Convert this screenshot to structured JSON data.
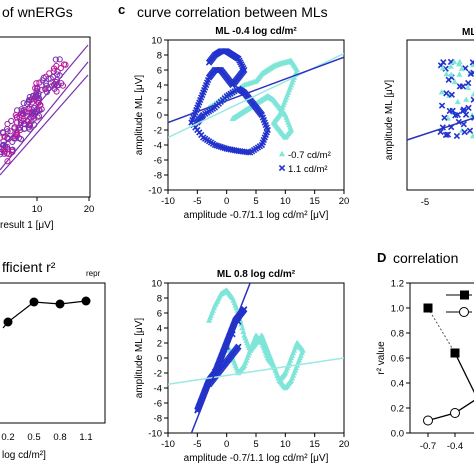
{
  "panels": {
    "b_partial": {
      "title": "of wnERGs",
      "xlabel": "result 1 [μV]",
      "xticks": [
        10,
        20
      ]
    },
    "c": {
      "letter": "c",
      "heading": "curve correlation between MLs",
      "legend": [
        "-0.7 cd/m²",
        "1.1 cd/m²"
      ]
    },
    "c_right_partial": {
      "title": "ML",
      "xlabel": "-5",
      "xtick_partial": "-5"
    },
    "b2_partial": {
      "title_main": "fficient r²",
      "title_sub": "repr",
      "xlabel": "log cd/m²]",
      "xticks": [
        "0.2",
        "0.5",
        "0.8",
        "1.1"
      ]
    },
    "d": {
      "letter": "D",
      "heading": "correlation",
      "ylabel": "r² value",
      "yticks": [
        "0.0",
        "0.2",
        "0.4",
        "0.6",
        "0.8",
        "1.0",
        "1.2"
      ],
      "xticks": [
        "-0.7",
        "-0.4",
        "-0."
      ]
    }
  },
  "colors": {
    "cyan": "#7fe5d8",
    "blue": "#2233cc",
    "darkblue": "#1a1aa0",
    "fitcyan": "#9be8e4",
    "fitblue": "#2a30c0",
    "purple": "#7a2fb0",
    "magenta": "#c0169a"
  },
  "chart_data": [
    {
      "type": "scatter",
      "title": "ML -0.4 log cd/m²",
      "xlabel": "amplitude -0.7/1.1 log cd/m² [μV]",
      "ylabel": "amplitude ML [μV]",
      "xlim": [
        -10,
        20
      ],
      "ylim": [
        -10,
        10
      ],
      "xticks": [
        -10,
        -5,
        0,
        5,
        10,
        15,
        20
      ],
      "yticks": [
        -10,
        -8,
        -6,
        -4,
        -2,
        0,
        2,
        4,
        6,
        8,
        10
      ],
      "legend": "inside bottom-right",
      "series": [
        {
          "name": "-0.7 cd/m²",
          "marker": "triangle",
          "x": [
            -3,
            -1,
            1,
            3,
            5,
            6,
            7,
            8,
            9,
            10,
            11,
            12,
            11,
            10,
            9,
            8,
            9,
            10,
            11,
            10,
            9,
            8,
            7,
            6,
            5,
            4,
            3,
            2,
            1
          ],
          "y": [
            1,
            2,
            3,
            4,
            4.5,
            5.5,
            6,
            6.5,
            6.8,
            7,
            7.2,
            6,
            4,
            2,
            0,
            -1,
            -2,
            -3,
            -2,
            0,
            1,
            2,
            2.5,
            2,
            1.5,
            1,
            0.5,
            0,
            -0.5
          ]
        },
        {
          "name": "1.1 cd/m²",
          "marker": "x",
          "x": [
            -3,
            -2,
            -1,
            0,
            1,
            2,
            3,
            2,
            1,
            0,
            -1,
            -2,
            -3,
            -4,
            -5,
            -6,
            -4,
            -2,
            0,
            2,
            4,
            6,
            7,
            6,
            5,
            4,
            3,
            2,
            0,
            -2,
            -4,
            -5
          ],
          "y": [
            7,
            8,
            8.5,
            8.5,
            8,
            7.5,
            6,
            5,
            4,
            5,
            6,
            6,
            5,
            3,
            1,
            -1,
            -3,
            -4,
            -4.5,
            -4.8,
            -5,
            -4,
            -2,
            0,
            1,
            2,
            3,
            3.5,
            2.5,
            1,
            0,
            -1
          ]
        }
      ],
      "fits": [
        {
          "series": "-0.7 cd/m²",
          "from": [
            -10,
            -3.0
          ],
          "to": [
            20,
            8.2
          ]
        },
        {
          "series": "1.1 cd/m²",
          "from": [
            -10,
            -1.0
          ],
          "to": [
            20,
            7.7
          ]
        }
      ]
    },
    {
      "type": "scatter",
      "title": "ML 0.8 log cd/m²",
      "xlabel": "amplitude -0.7/1.1 log cd/m² [μV]",
      "ylabel": "amplitude ML [μV]",
      "xlim": [
        -10,
        20
      ],
      "ylim": [
        -10,
        10
      ],
      "xticks": [
        -10,
        -5,
        0,
        5,
        10,
        15,
        20
      ],
      "yticks": [
        -10,
        -8,
        -6,
        -4,
        -2,
        0,
        2,
        4,
        6,
        8,
        10
      ],
      "series": [
        {
          "name": "-0.7 cd/m²",
          "marker": "triangle",
          "x": [
            -3,
            -2,
            -1,
            0,
            1,
            2,
            3,
            4,
            5,
            6,
            7,
            8,
            9,
            10,
            11,
            12,
            13,
            12,
            11,
            10,
            9,
            8,
            7,
            6,
            5,
            4,
            3,
            2,
            1,
            0
          ],
          "y": [
            5,
            7,
            8.5,
            9,
            8,
            6,
            3,
            1,
            2,
            3,
            1,
            -1,
            -3,
            -2,
            0,
            2,
            1,
            -1,
            -3,
            -4,
            -3,
            -1,
            0,
            2,
            3,
            1,
            -1,
            -2,
            0,
            2
          ]
        },
        {
          "name": "1.1 cd/m²",
          "marker": "x",
          "x": [
            -5,
            -4.5,
            -4,
            -3.5,
            -3,
            -2.5,
            -2,
            -1.5,
            -1,
            -0.5,
            0,
            0.5,
            1,
            1.5,
            2,
            2.5,
            3,
            -3,
            -2,
            -1,
            0,
            1,
            2
          ],
          "y": [
            -7,
            -6,
            -5,
            -4,
            -3,
            -2.5,
            -2,
            -1,
            0,
            1,
            2,
            3,
            4,
            5,
            5.5,
            6,
            6.5,
            -3.5,
            -2.5,
            -1.5,
            -0.5,
            0.5,
            1.5
          ]
        }
      ],
      "fits": [
        {
          "series": "-0.7 cd/m²",
          "from": [
            -10,
            -3.5
          ],
          "to": [
            20,
            0.0
          ]
        },
        {
          "series": "1.1 cd/m²",
          "from": [
            -6,
            -10
          ],
          "to": [
            4,
            10
          ]
        }
      ]
    },
    {
      "type": "line",
      "title": "correlation",
      "ylabel": "r² value",
      "ylim": [
        0,
        1.2
      ],
      "categories": [
        "-0.7",
        "-0.4",
        "-0."
      ],
      "series": [
        {
          "name": "",
          "marker": "square-filled",
          "values": [
            1.0,
            0.64,
            0.2
          ]
        },
        {
          "name": "",
          "marker": "circle-open",
          "values": [
            0.1,
            0.16,
            0.3
          ]
        }
      ]
    },
    {
      "type": "line",
      "title": "fficient r²repr",
      "categories": [
        "0.2",
        "0.5",
        "0.8",
        "1.1"
      ],
      "series": [
        {
          "name": "",
          "marker": "circle-filled",
          "values": [
            0.5,
            0.86,
            0.86,
            0.87
          ]
        }
      ]
    }
  ]
}
